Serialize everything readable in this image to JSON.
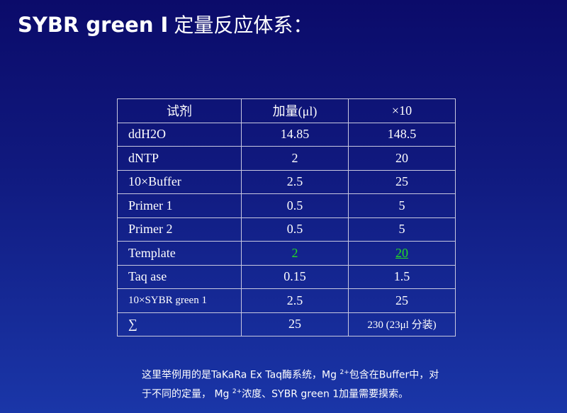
{
  "title": {
    "latin": "SYBR green I",
    "chinese": "定量反应体系："
  },
  "table": {
    "header": [
      "试剂",
      "加量(μl)",
      "×10"
    ],
    "rows": [
      [
        "ddH2O",
        "14.85",
        "148.5"
      ],
      [
        "dNTP",
        "2",
        "20"
      ],
      [
        "10×Buffer",
        "2.5",
        "25"
      ],
      [
        "Primer 1",
        "0.5",
        "5"
      ],
      [
        "Primer 2",
        "0.5",
        "5"
      ],
      [
        "Template",
        "2",
        "20"
      ],
      [
        "Taq ase",
        "0.15",
        "1.5"
      ],
      [
        "10×SYBR green 1",
        "2.5",
        "25"
      ],
      [
        "∑",
        "25",
        "230 (23μl 分装)"
      ]
    ]
  },
  "note": [
    "这里举例用的是TaKaRa Ex Taq酶系统，Mg ",
    "2+",
    "包含在Buffer中，对于不同的定量， Mg ",
    "2+",
    "浓度、SYBR green 1加量需要摸索。"
  ]
}
